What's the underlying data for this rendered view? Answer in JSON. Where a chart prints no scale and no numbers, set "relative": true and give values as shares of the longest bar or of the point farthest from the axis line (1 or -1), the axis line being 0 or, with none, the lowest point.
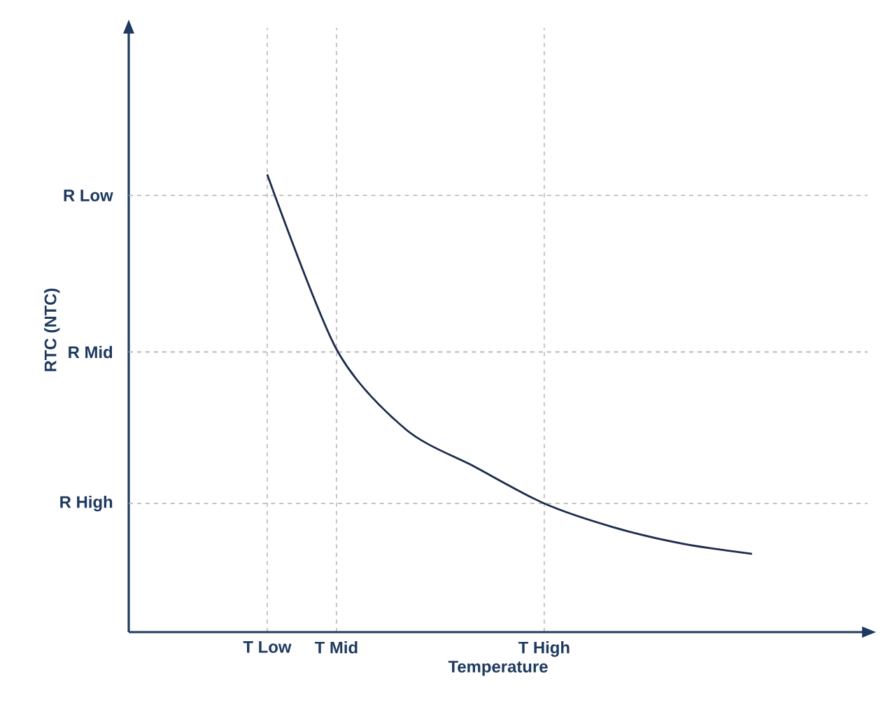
{
  "chart_data": {
    "type": "line",
    "xlabel": "Temperature",
    "ylabel": "RTC (NTC)",
    "color": "#1b2b4b",
    "relative": true,
    "grid": "x",
    "categories": [
      null,
      null,
      "T Low",
      "T Mid",
      null,
      null,
      "T High",
      null,
      null,
      null,
      null
    ],
    "values": [
      null,
      null,
      1.0,
      0.618,
      0.443,
      0.361,
      0.281,
      0.229,
      0.193,
      0.171,
      null
    ],
    "ref_lines": [
      {
        "axis": "y",
        "value": 0.954,
        "label": "R Low",
        "color": "#b0b0b0",
        "line_style": "dashed"
      },
      {
        "axis": "y",
        "value": 0.612,
        "label": "R Mid",
        "color": "#b0b0b0",
        "line_style": "dashed"
      },
      {
        "axis": "y",
        "value": 0.281,
        "label": "R High",
        "color": "#b0b0b0",
        "line_style": "dashed"
      }
    ]
  }
}
